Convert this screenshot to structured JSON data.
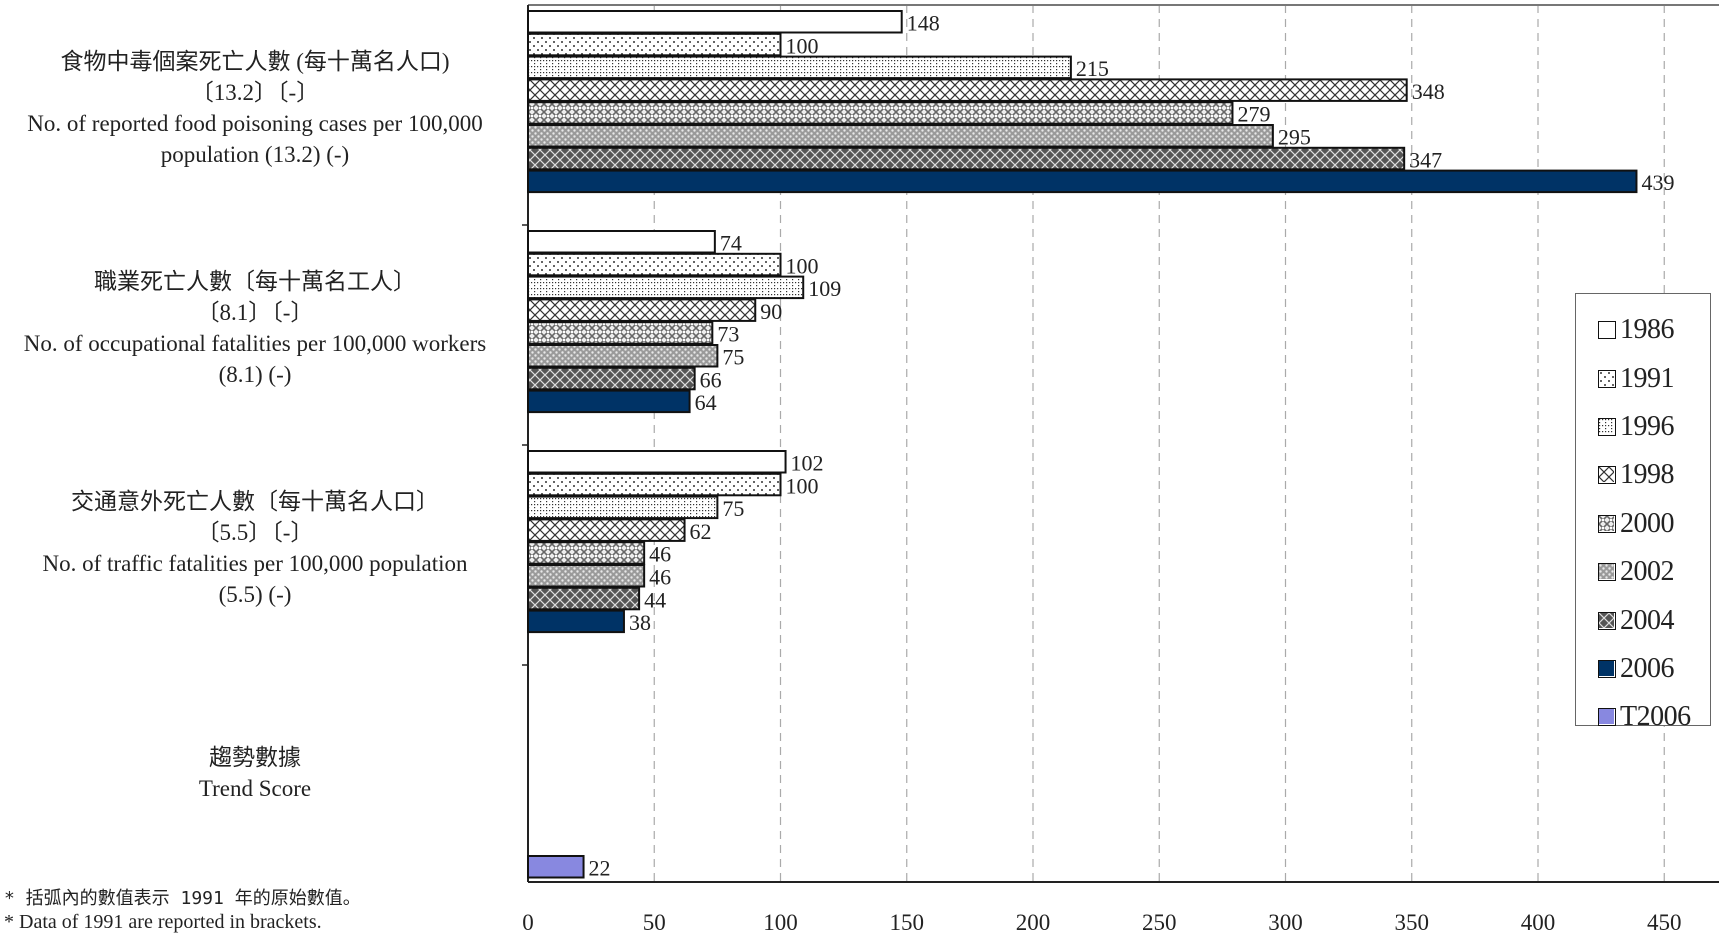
{
  "chart_data": {
    "type": "bar",
    "orientation": "horizontal",
    "categories": [
      {
        "zh": "食物中毒個案死亡人數 (每十萬名人口)",
        "bracket": "〔13.2〕〔-〕",
        "en1": "No. of reported food poisoning cases per 100,000",
        "en2": "population (13.2) (-)"
      },
      {
        "zh": "職業死亡人數〔每十萬名工人〕",
        "bracket": "〔8.1〕〔-〕",
        "en1": "No. of occupational fatalities per 100,000 workers",
        "en2": "(8.1) (-)"
      },
      {
        "zh": "交通意外死亡人數〔每十萬名人口〕",
        "bracket": "〔5.5〕〔-〕",
        "en1": "No. of traffic fatalities per 100,000 population",
        "en2": "(5.5) (-)"
      },
      {
        "zh": "趨勢數據",
        "bracket": "",
        "en1": "Trend Score",
        "en2": ""
      }
    ],
    "series": [
      {
        "name": "1986",
        "values": [
          148,
          74,
          102,
          null
        ],
        "pattern": "solid-white"
      },
      {
        "name": "1991",
        "values": [
          100,
          100,
          100,
          null
        ],
        "pattern": "dots"
      },
      {
        "name": "1996",
        "values": [
          215,
          109,
          75,
          null
        ],
        "pattern": "dotted-grid"
      },
      {
        "name": "1998",
        "values": [
          348,
          90,
          62,
          null
        ],
        "pattern": "cross-hatch"
      },
      {
        "name": "2000",
        "values": [
          279,
          73,
          46,
          null
        ],
        "pattern": "zigzag"
      },
      {
        "name": "2002",
        "values": [
          295,
          75,
          46,
          null
        ],
        "pattern": "grey-dots"
      },
      {
        "name": "2004",
        "values": [
          347,
          66,
          44,
          null
        ],
        "pattern": "dark-cross"
      },
      {
        "name": "2006",
        "values": [
          439,
          64,
          38,
          null
        ],
        "pattern": "solid-navy"
      },
      {
        "name": "T2006",
        "values": [
          null,
          null,
          null,
          22
        ],
        "pattern": "solid-purple"
      }
    ],
    "xlim": [
      0,
      450
    ],
    "xticks": [
      0,
      50,
      100,
      150,
      200,
      250,
      300,
      350,
      400,
      450
    ],
    "grid": "vertical-dashed",
    "legend_position": "right"
  },
  "colors": {
    "navy": "#003366",
    "purple": "#8888e0",
    "grid": "#aaaaaa"
  },
  "footnotes": {
    "zh": "* 括弧內的數值表示 1991 年的原始數值。",
    "en": "* Data of 1991 are reported in brackets."
  }
}
